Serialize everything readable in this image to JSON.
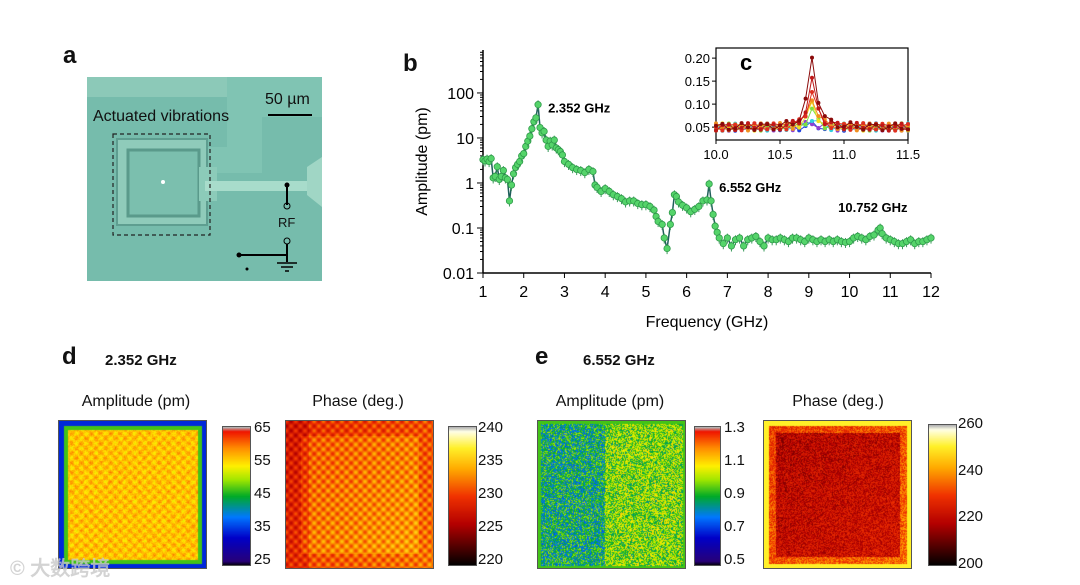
{
  "panels": {
    "a": "a",
    "b": "b",
    "c": "c",
    "d": "d",
    "e": "e"
  },
  "micrograph": {
    "label_vibrations": "Actuated vibrations",
    "scale_bar": "50 µm",
    "rf_label": "RF",
    "bg_color": "#72b8a8"
  },
  "watermark": "大数跨境",
  "chart_data": [
    {
      "type": "line",
      "panel": "b",
      "xlabel": "Frequency (GHz)",
      "ylabel": "Amplitude (pm)",
      "yscale": "log",
      "xlim": [
        1,
        12
      ],
      "ylim": [
        0.01,
        900
      ],
      "xticks": [
        1,
        2,
        3,
        4,
        5,
        6,
        7,
        8,
        9,
        10,
        11,
        12
      ],
      "yticks": [
        {
          "v": 0.01,
          "t": "0.01"
        },
        {
          "v": 0.1,
          "t": "0.1"
        },
        {
          "v": 1,
          "t": "1"
        },
        {
          "v": 10,
          "t": "10"
        },
        {
          "v": 100,
          "t": "100"
        }
      ],
      "annotations": [
        {
          "x": 2.352,
          "y": 55,
          "text": "2.352  GHz"
        },
        {
          "x": 6.552,
          "y": 0.95,
          "text": "6.552  GHz"
        },
        {
          "x": 10.752,
          "y": 0.1,
          "text": "10.752  GHz"
        }
      ],
      "series_color": "#1f5f5a",
      "marker_color": "#55d46a",
      "points": [
        [
          1.0,
          3.3
        ],
        [
          1.05,
          3.1
        ],
        [
          1.1,
          3.4
        ],
        [
          1.15,
          3.0
        ],
        [
          1.2,
          3.5
        ],
        [
          1.25,
          1.3
        ],
        [
          1.3,
          1.4
        ],
        [
          1.35,
          2.3
        ],
        [
          1.4,
          1.2
        ],
        [
          1.45,
          1.4
        ],
        [
          1.5,
          1.9
        ],
        [
          1.55,
          1.3
        ],
        [
          1.6,
          1.2
        ],
        [
          1.65,
          0.4
        ],
        [
          1.7,
          0.9
        ],
        [
          1.75,
          1.6
        ],
        [
          1.8,
          2.2
        ],
        [
          1.85,
          2.6
        ],
        [
          1.9,
          3.0
        ],
        [
          1.95,
          4.0
        ],
        [
          2.0,
          4.5
        ],
        [
          2.05,
          6.5
        ],
        [
          2.1,
          8.5
        ],
        [
          2.15,
          11
        ],
        [
          2.2,
          16
        ],
        [
          2.25,
          23
        ],
        [
          2.3,
          28
        ],
        [
          2.352,
          55
        ],
        [
          2.4,
          17
        ],
        [
          2.45,
          13
        ],
        [
          2.5,
          14
        ],
        [
          2.55,
          9
        ],
        [
          2.6,
          6.5
        ],
        [
          2.65,
          8.5
        ],
        [
          2.7,
          7
        ],
        [
          2.75,
          9
        ],
        [
          2.8,
          6
        ],
        [
          2.85,
          5.5
        ],
        [
          2.9,
          5
        ],
        [
          2.95,
          4.2
        ],
        [
          3.0,
          3.0
        ],
        [
          3.1,
          2.6
        ],
        [
          3.2,
          2.2
        ],
        [
          3.3,
          2.0
        ],
        [
          3.4,
          1.9
        ],
        [
          3.5,
          1.7
        ],
        [
          3.6,
          2.0
        ],
        [
          3.7,
          1.8
        ],
        [
          3.75,
          0.9
        ],
        [
          3.8,
          0.8
        ],
        [
          3.9,
          0.65
        ],
        [
          4.0,
          0.75
        ],
        [
          4.1,
          0.65
        ],
        [
          4.2,
          0.55
        ],
        [
          4.3,
          0.5
        ],
        [
          4.4,
          0.45
        ],
        [
          4.5,
          0.38
        ],
        [
          4.6,
          0.4
        ],
        [
          4.7,
          0.4
        ],
        [
          4.8,
          0.35
        ],
        [
          4.9,
          0.33
        ],
        [
          5.0,
          0.33
        ],
        [
          5.1,
          0.3
        ],
        [
          5.2,
          0.25
        ],
        [
          5.25,
          0.18
        ],
        [
          5.3,
          0.14
        ],
        [
          5.4,
          0.12
        ],
        [
          5.45,
          0.06
        ],
        [
          5.52,
          0.035
        ],
        [
          5.6,
          0.12
        ],
        [
          5.65,
          0.22
        ],
        [
          5.7,
          0.55
        ],
        [
          5.75,
          0.5
        ],
        [
          5.8,
          0.38
        ],
        [
          5.9,
          0.32
        ],
        [
          6.0,
          0.28
        ],
        [
          6.1,
          0.23
        ],
        [
          6.2,
          0.26
        ],
        [
          6.3,
          0.3
        ],
        [
          6.4,
          0.4
        ],
        [
          6.5,
          0.42
        ],
        [
          6.552,
          0.95
        ],
        [
          6.6,
          0.4
        ],
        [
          6.65,
          0.2
        ],
        [
          6.7,
          0.11
        ],
        [
          6.75,
          0.08
        ],
        [
          6.8,
          0.06
        ],
        [
          6.9,
          0.045
        ],
        [
          7.0,
          0.06
        ],
        [
          7.1,
          0.04
        ],
        [
          7.2,
          0.055
        ],
        [
          7.3,
          0.06
        ],
        [
          7.4,
          0.04
        ],
        [
          7.5,
          0.055
        ],
        [
          7.6,
          0.06
        ],
        [
          7.7,
          0.065
        ],
        [
          7.8,
          0.05
        ],
        [
          7.9,
          0.04
        ],
        [
          8.0,
          0.06
        ],
        [
          8.1,
          0.055
        ],
        [
          8.2,
          0.055
        ],
        [
          8.3,
          0.06
        ],
        [
          8.4,
          0.055
        ],
        [
          8.5,
          0.05
        ],
        [
          8.6,
          0.06
        ],
        [
          8.7,
          0.06
        ],
        [
          8.8,
          0.055
        ],
        [
          8.9,
          0.05
        ],
        [
          9.0,
          0.06
        ],
        [
          9.1,
          0.055
        ],
        [
          9.2,
          0.05
        ],
        [
          9.3,
          0.055
        ],
        [
          9.4,
          0.05
        ],
        [
          9.5,
          0.055
        ],
        [
          9.6,
          0.05
        ],
        [
          9.7,
          0.055
        ],
        [
          9.8,
          0.05
        ],
        [
          9.9,
          0.048
        ],
        [
          10.0,
          0.05
        ],
        [
          10.1,
          0.06
        ],
        [
          10.2,
          0.065
        ],
        [
          10.3,
          0.06
        ],
        [
          10.4,
          0.055
        ],
        [
          10.5,
          0.065
        ],
        [
          10.6,
          0.07
        ],
        [
          10.7,
          0.09
        ],
        [
          10.752,
          0.1
        ],
        [
          10.8,
          0.075
        ],
        [
          10.9,
          0.06
        ],
        [
          11.0,
          0.055
        ],
        [
          11.1,
          0.05
        ],
        [
          11.2,
          0.045
        ],
        [
          11.3,
          0.045
        ],
        [
          11.4,
          0.05
        ],
        [
          11.5,
          0.055
        ],
        [
          11.6,
          0.045
        ],
        [
          11.7,
          0.05
        ],
        [
          11.8,
          0.05
        ],
        [
          11.9,
          0.055
        ],
        [
          12.0,
          0.06
        ]
      ]
    },
    {
      "type": "line",
      "panel": "c",
      "xlim": [
        10.0,
        11.5
      ],
      "ylim": [
        0.022,
        0.222
      ],
      "xticks": [
        {
          "v": 10.0,
          "t": "10.0"
        },
        {
          "v": 10.5,
          "t": "10.5"
        },
        {
          "v": 11.0,
          "t": "11.0"
        },
        {
          "v": 11.5,
          "t": "11.5"
        }
      ],
      "yticks": [
        {
          "v": 0.05,
          "t": "0.05"
        },
        {
          "v": 0.1,
          "t": "0.10"
        },
        {
          "v": 0.15,
          "t": "0.15"
        },
        {
          "v": 0.2,
          "t": "0.20"
        }
      ],
      "peak_center": 10.752,
      "baseline": 0.05,
      "series": [
        {
          "color": "#2040e0",
          "peak": 0.055
        },
        {
          "color": "#9040d0",
          "peak": 0.06
        },
        {
          "color": "#30d0e0",
          "peak": 0.07
        },
        {
          "color": "#80e040",
          "peak": 0.085
        },
        {
          "color": "#f0e020",
          "peak": 0.1
        },
        {
          "color": "#f09020",
          "peak": 0.115
        },
        {
          "color": "#e03020",
          "peak": 0.13
        },
        {
          "color": "#c01818",
          "peak": 0.15
        },
        {
          "color": "#8b0a0a",
          "peak": 0.2
        }
      ]
    },
    {
      "type": "heatmap",
      "panel": "d-amplitude",
      "freq_label": "2.352 GHz",
      "title": "Amplitude (pm)",
      "colorbar_ticks": [
        "65",
        "55",
        "45",
        "35",
        "25"
      ],
      "range": [
        25,
        65
      ],
      "colormap": "jet"
    },
    {
      "type": "heatmap",
      "panel": "d-phase",
      "title": "Phase (deg.)",
      "colorbar_ticks": [
        "240",
        "235",
        "230",
        "225",
        "220"
      ],
      "range": [
        220,
        240
      ],
      "colormap": "hot"
    },
    {
      "type": "heatmap",
      "panel": "e-amplitude",
      "freq_label": "6.552 GHz",
      "title": "Amplitude (pm)",
      "colorbar_ticks": [
        "1.3",
        "1.1",
        "0.9",
        "0.7",
        "0.5"
      ],
      "range": [
        0.5,
        1.3
      ],
      "colormap": "jet"
    },
    {
      "type": "heatmap",
      "panel": "e-phase",
      "title": "Phase (deg.)",
      "colorbar_ticks": [
        "260",
        "240",
        "220",
        "200"
      ],
      "range": [
        200,
        260
      ],
      "colormap": "hot"
    }
  ]
}
